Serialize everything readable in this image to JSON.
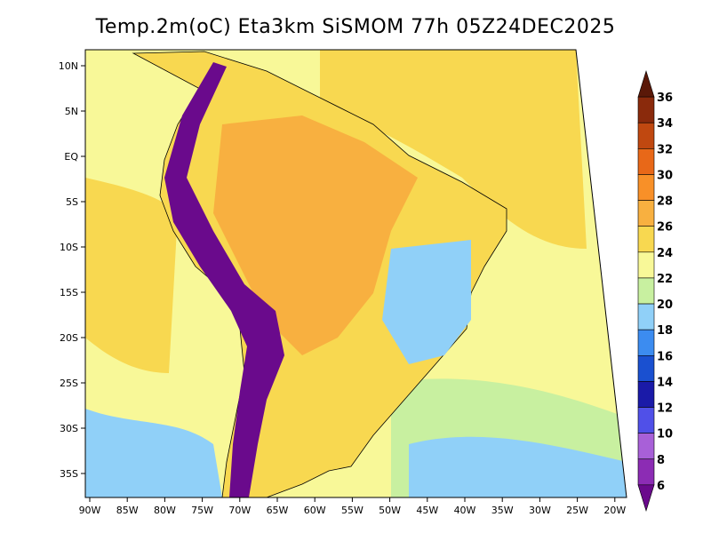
{
  "title": "Temp.2m(oC) Eta3km SiSMOM 77h 05Z24DEC2025",
  "lon_labels": [
    "90W",
    "85W",
    "80W",
    "75W",
    "70W",
    "65W",
    "60W",
    "55W",
    "50W",
    "45W",
    "40W",
    "35W",
    "30W",
    "25W",
    "20W"
  ],
  "lat_labels": [
    "10N",
    "5N",
    "EQ",
    "5S",
    "10S",
    "15S",
    "20S",
    "25S",
    "30S",
    "35S"
  ],
  "colorbar": {
    "labels": [
      "6",
      "8",
      "10",
      "12",
      "14",
      "16",
      "18",
      "20",
      "22",
      "24",
      "26",
      "28",
      "30",
      "32",
      "34",
      "36"
    ],
    "colors": [
      "#6a0a8c",
      "#8c2cb4",
      "#a860d8",
      "#5050e8",
      "#1a1aa8",
      "#1a50d0",
      "#3c8cf0",
      "#90d0f8",
      "#c8f0a0",
      "#f8f898",
      "#f8d850",
      "#f8b040",
      "#f89028",
      "#e86818",
      "#c04810",
      "#8a2a0c",
      "#5a1808"
    ]
  },
  "regions": {
    "ocean_color": "#f8f898",
    "warm_color": "#f8d850",
    "hot_color": "#f8b040",
    "cool_color": "#c8f0a0",
    "cold_color": "#90d0f8",
    "andes_color": "#6a0a8c"
  }
}
